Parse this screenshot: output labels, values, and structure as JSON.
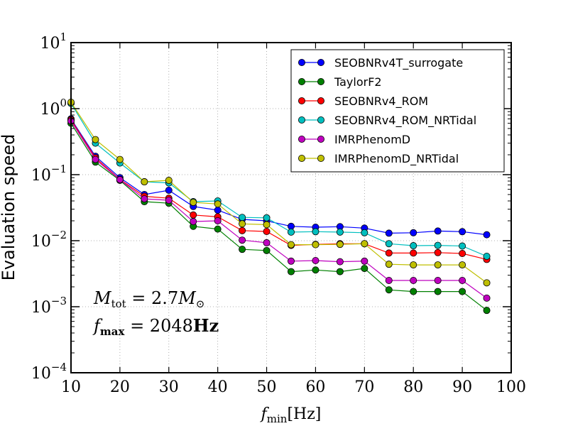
{
  "chart_data": {
    "type": "line",
    "title": "",
    "xlabel": "f_min[Hz]",
    "xlabel_parts": {
      "main": "f",
      "sub": "min",
      "rest": "[Hz]"
    },
    "ylabel": "Evaluation speed",
    "xlim": [
      10,
      100
    ],
    "ylim": [
      0.0001,
      10
    ],
    "yscale": "log",
    "grid": true,
    "legend_position": "upper-right",
    "xticks": [
      10,
      20,
      30,
      40,
      50,
      60,
      70,
      80,
      90,
      100
    ],
    "yticks": [
      {
        "value": 0.0001,
        "base": "10",
        "exp": "−4"
      },
      {
        "value": 0.001,
        "base": "10",
        "exp": "−3"
      },
      {
        "value": 0.01,
        "base": "10",
        "exp": "−2"
      },
      {
        "value": 0.1,
        "base": "10",
        "exp": "−1"
      },
      {
        "value": 1,
        "base": "10",
        "exp": "0"
      },
      {
        "value": 10,
        "base": "10",
        "exp": "1"
      }
    ],
    "annotations": [
      {
        "text": "M_tot = 2.7M_⊙",
        "main": "M",
        "sub": "tot",
        "rest": " = 2.7",
        "tail": "M",
        "tailsub": "⊙"
      },
      {
        "text": "f_max = 2048Hz",
        "main": "f",
        "sub": "max",
        "rest": " = 2048",
        "tail": "Hz",
        "tailsub": ""
      }
    ],
    "x": [
      10,
      15,
      20,
      25,
      30,
      35,
      40,
      45,
      50,
      55,
      60,
      65,
      70,
      75,
      80,
      85,
      90,
      95
    ],
    "series": [
      {
        "name": "SEOBNRv4T_surrogate",
        "color": "#0000ff",
        "values": [
          0.7,
          0.19,
          0.09,
          0.05,
          0.058,
          0.033,
          0.029,
          0.021,
          0.02,
          0.0165,
          0.016,
          0.0163,
          0.0155,
          0.013,
          0.0132,
          0.014,
          0.0137,
          0.0123
        ]
      },
      {
        "name": "TaylorF2",
        "color": "#008000",
        "values": [
          0.6,
          0.155,
          0.082,
          0.039,
          0.037,
          0.0165,
          0.015,
          0.0074,
          0.0071,
          0.0034,
          0.0036,
          0.0034,
          0.0038,
          0.0018,
          0.0017,
          0.0017,
          0.0017,
          0.00088
        ]
      },
      {
        "name": "SEOBNRv4_ROM",
        "color": "#ff0000",
        "values": [
          0.68,
          0.18,
          0.085,
          0.047,
          0.044,
          0.0245,
          0.023,
          0.0142,
          0.0138,
          0.0085,
          0.0088,
          0.009,
          0.009,
          0.0065,
          0.0065,
          0.0066,
          0.0064,
          0.0052
        ]
      },
      {
        "name": "SEOBNRv4_ROM_NRTidal",
        "color": "#00bfbf",
        "values": [
          1.2,
          0.3,
          0.15,
          0.078,
          0.075,
          0.039,
          0.04,
          0.0225,
          0.0222,
          0.0135,
          0.0137,
          0.0135,
          0.0132,
          0.009,
          0.0084,
          0.0085,
          0.0083,
          0.0058
        ]
      },
      {
        "name": "IMRPhenomD",
        "color": "#bf00bf",
        "values": [
          0.65,
          0.17,
          0.084,
          0.043,
          0.041,
          0.0195,
          0.02,
          0.0102,
          0.0093,
          0.0049,
          0.005,
          0.0048,
          0.0049,
          0.0025,
          0.0025,
          0.0025,
          0.0025,
          0.00135
        ]
      },
      {
        "name": "IMRPhenomD_NRTidal",
        "color": "#bfbf00",
        "values": [
          1.25,
          0.34,
          0.17,
          0.078,
          0.082,
          0.038,
          0.036,
          0.018,
          0.0175,
          0.0087,
          0.0087,
          0.0088,
          0.009,
          0.0044,
          0.0043,
          0.0043,
          0.0043,
          0.0023
        ]
      }
    ]
  }
}
